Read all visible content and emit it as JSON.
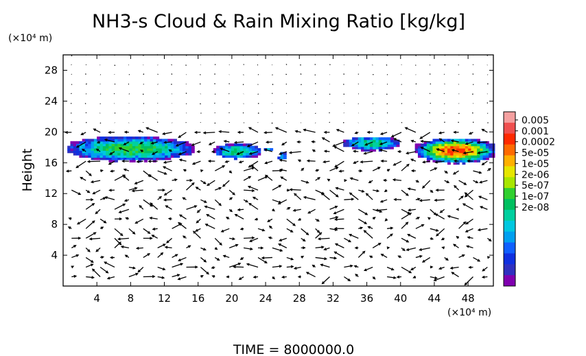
{
  "chart_data": {
    "type": "heatmap",
    "title": "NH3-s Cloud & Rain Mixing Ratio [kg/kg]",
    "ylabel": "Height",
    "xlabel": "",
    "x_unit": "(×10⁴ m)",
    "y_unit": "(×10⁴ m)",
    "xlim": [
      0,
      51
    ],
    "ylim": [
      0,
      30
    ],
    "x_ticks": [
      4,
      8,
      12,
      16,
      20,
      24,
      28,
      32,
      36,
      40,
      44,
      48
    ],
    "y_ticks": [
      4,
      8,
      12,
      16,
      20,
      24,
      28
    ],
    "footer": "TIME = 8000000.0",
    "colorbar": {
      "labels": [
        "0.005",
        "0.001",
        "0.0002",
        "5e-05",
        "1e-05",
        "2e-06",
        "5e-07",
        "1e-07",
        "2e-08"
      ],
      "colors": [
        "#f5a0a0",
        "#f05050",
        "#ff2a00",
        "#ff6a00",
        "#ffb000",
        "#e6e600",
        "#a8e600",
        "#30d030",
        "#00c060",
        "#00d0a0",
        "#00c8e0",
        "#00a0f0",
        "#1060ff",
        "#1030e0",
        "#3030c0",
        "#8000b0"
      ]
    },
    "regions": [
      {
        "x0": 0.5,
        "x1": 15.2,
        "y0": 16.1,
        "y1": 19.3,
        "peak": 7
      },
      {
        "x0": 17.8,
        "x1": 23.3,
        "y0": 16.4,
        "y1": 18.3,
        "peak": 6
      },
      {
        "x0": 23.8,
        "x1": 24.6,
        "y0": 17.3,
        "y1": 17.9,
        "peak": 4
      },
      {
        "x0": 25.4,
        "x1": 26.4,
        "y0": 16.2,
        "y1": 17.2,
        "peak": 3
      },
      {
        "x0": 33.2,
        "x1": 39.8,
        "y0": 17.5,
        "y1": 19.3,
        "peak": 6
      },
      {
        "x0": 41.7,
        "x1": 51.0,
        "y0": 15.8,
        "y1": 19.1,
        "peak": 12
      }
    ],
    "vector_field": "wind arrows",
    "grid": false,
    "legend": "colorbar-right"
  }
}
